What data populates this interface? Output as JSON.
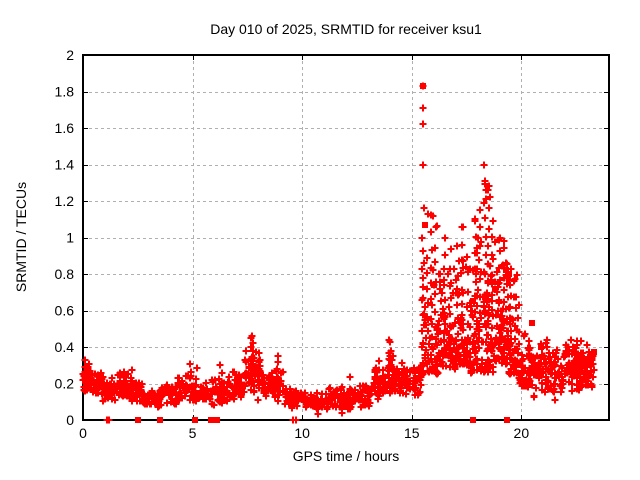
{
  "chart": {
    "title": "Day 010 of 2025, SRMTID for receiver ksu1",
    "xlabel": "GPS time / hours",
    "ylabel": "SRMTID / TECUs",
    "marker_color": "#ff0000",
    "grid_color": "#b0b0b0",
    "axis_color": "#000000",
    "background": "#ffffff",
    "x_tick_labels": [
      "0",
      "5",
      "10",
      "15",
      "20"
    ],
    "y_tick_labels": [
      "0",
      "0.2",
      "0.4",
      "0.6",
      "0.8",
      "1",
      "1.2",
      "1.4",
      "1.6",
      "1.8",
      "2"
    ]
  },
  "chart_data": {
    "type": "scatter",
    "title": "Day 010 of 2025, SRMTID for receiver ksu1",
    "xlabel": "GPS time / hours",
    "ylabel": "SRMTID / TECUs",
    "series_name": "SRMTID",
    "marker": "plus",
    "marker_color": "#ff0000",
    "xlim": [
      0,
      24
    ],
    "ylim": [
      0,
      2
    ],
    "x_ticks": [
      0,
      5,
      10,
      15,
      20
    ],
    "y_ticks": [
      0,
      0.2,
      0.4,
      0.6,
      0.8,
      1,
      1.2,
      1.4,
      1.6,
      1.8,
      2
    ],
    "grid": "dashed gray at major ticks",
    "legend": "none",
    "note": "Dense ~2800-point GPS scintillation scatter. cloud_bands give the envelope of the dense cloud as [x_start_hr, x_end_hr, y_min, y_max, n_points]; streaks are vertical bursts [x_hr, y_min, y_max, n_points]; notable_points are individually readable extreme markers [x_hr, y_TECU].",
    "cloud_bands": [
      [
        0.0,
        0.35,
        0.15,
        0.33,
        28
      ],
      [
        0.35,
        0.9,
        0.13,
        0.28,
        42
      ],
      [
        0.9,
        1.5,
        0.1,
        0.24,
        42
      ],
      [
        1.5,
        2.1,
        0.1,
        0.27,
        42
      ],
      [
        2.1,
        2.7,
        0.09,
        0.23,
        36
      ],
      [
        2.7,
        3.5,
        0.06,
        0.17,
        48
      ],
      [
        3.5,
        4.3,
        0.07,
        0.2,
        42
      ],
      [
        4.3,
        5.0,
        0.09,
        0.26,
        40
      ],
      [
        5.0,
        5.6,
        0.08,
        0.2,
        34
      ],
      [
        5.6,
        6.6,
        0.07,
        0.24,
        52
      ],
      [
        6.6,
        7.4,
        0.1,
        0.28,
        46
      ],
      [
        7.4,
        8.2,
        0.12,
        0.4,
        50
      ],
      [
        8.2,
        9.2,
        0.1,
        0.3,
        52
      ],
      [
        9.2,
        10.2,
        0.06,
        0.18,
        52
      ],
      [
        10.2,
        11.2,
        0.05,
        0.15,
        52
      ],
      [
        11.2,
        12.4,
        0.05,
        0.18,
        58
      ],
      [
        12.4,
        13.2,
        0.06,
        0.2,
        46
      ],
      [
        13.2,
        13.9,
        0.1,
        0.3,
        40
      ],
      [
        13.9,
        14.4,
        0.12,
        0.38,
        34
      ],
      [
        14.4,
        15.1,
        0.12,
        0.32,
        40
      ],
      [
        15.1,
        15.5,
        0.12,
        0.35,
        26
      ],
      [
        15.5,
        16.2,
        0.25,
        0.95,
        48
      ],
      [
        16.2,
        17.0,
        0.28,
        0.95,
        62
      ],
      [
        17.0,
        17.6,
        0.3,
        1.0,
        56
      ],
      [
        17.6,
        18.2,
        0.25,
        1.05,
        56
      ],
      [
        18.2,
        18.8,
        0.25,
        1.1,
        60
      ],
      [
        18.8,
        19.4,
        0.3,
        0.95,
        56
      ],
      [
        19.4,
        19.9,
        0.25,
        0.85,
        50
      ],
      [
        19.9,
        20.4,
        0.18,
        0.55,
        44
      ],
      [
        20.4,
        21.2,
        0.12,
        0.45,
        50
      ],
      [
        21.2,
        22.0,
        0.1,
        0.4,
        52
      ],
      [
        22.0,
        22.7,
        0.15,
        0.45,
        52
      ],
      [
        22.7,
        23.3,
        0.15,
        0.42,
        46
      ]
    ],
    "streaks": [
      [
        0.1,
        0.16,
        0.33,
        6
      ],
      [
        2.2,
        0.1,
        0.27,
        5
      ],
      [
        4.9,
        0.1,
        0.3,
        6
      ],
      [
        5.2,
        0.1,
        0.28,
        5
      ],
      [
        6.3,
        0.08,
        0.3,
        6
      ],
      [
        7.7,
        0.15,
        0.45,
        7
      ],
      [
        7.75,
        0.15,
        0.42,
        6
      ],
      [
        8.0,
        0.12,
        0.35,
        6
      ],
      [
        8.85,
        0.12,
        0.33,
        6
      ],
      [
        10.7,
        0.05,
        0.15,
        5
      ],
      [
        11.8,
        0.05,
        0.17,
        5
      ],
      [
        12.2,
        0.06,
        0.22,
        5
      ],
      [
        13.5,
        0.1,
        0.32,
        6
      ],
      [
        14.0,
        0.15,
        0.43,
        7
      ],
      [
        14.05,
        0.14,
        0.38,
        6
      ],
      [
        14.55,
        0.15,
        0.3,
        6
      ],
      [
        15.5,
        0.3,
        1.0,
        9
      ],
      [
        15.55,
        0.25,
        0.85,
        8
      ],
      [
        15.7,
        0.3,
        0.9,
        8
      ],
      [
        15.9,
        0.35,
        1.13,
        9
      ],
      [
        16.1,
        0.4,
        1.05,
        8
      ],
      [
        16.3,
        0.35,
        0.8,
        7
      ],
      [
        16.5,
        0.4,
        1.0,
        8
      ],
      [
        16.75,
        0.35,
        0.92,
        8
      ],
      [
        17.1,
        0.4,
        0.95,
        8
      ],
      [
        17.3,
        0.45,
        1.06,
        8
      ],
      [
        17.55,
        0.35,
        0.9,
        7
      ],
      [
        17.9,
        0.4,
        1.1,
        9
      ],
      [
        18.0,
        0.35,
        1.0,
        8
      ],
      [
        18.1,
        0.5,
        1.15,
        8
      ],
      [
        18.35,
        0.5,
        1.3,
        9
      ],
      [
        18.5,
        0.45,
        1.25,
        9
      ],
      [
        18.65,
        0.4,
        1.1,
        8
      ],
      [
        19.0,
        0.4,
        1.0,
        8
      ],
      [
        19.2,
        0.45,
        0.95,
        7
      ],
      [
        19.35,
        0.5,
        0.85,
        7
      ],
      [
        19.5,
        0.35,
        0.82,
        8
      ],
      [
        19.7,
        0.3,
        0.75,
        7
      ],
      [
        20.9,
        0.15,
        0.42,
        6
      ],
      [
        21.5,
        0.1,
        0.35,
        6
      ],
      [
        22.3,
        0.15,
        0.45,
        7
      ],
      [
        22.55,
        0.18,
        0.44,
        7
      ],
      [
        22.7,
        0.2,
        0.42,
        6
      ],
      [
        23.0,
        0.18,
        0.4,
        6
      ]
    ],
    "notable_points": [
      [
        15.5,
        1.83
      ],
      [
        15.52,
        1.71
      ],
      [
        15.5,
        1.62
      ],
      [
        15.51,
        1.4
      ],
      [
        15.55,
        1.16
      ],
      [
        15.72,
        1.13
      ],
      [
        15.95,
        1.12
      ],
      [
        16.12,
        1.06
      ],
      [
        17.32,
        1.06
      ],
      [
        17.9,
        1.1
      ],
      [
        18.12,
        1.15
      ],
      [
        18.3,
        1.4
      ],
      [
        18.33,
        1.31
      ],
      [
        18.4,
        1.26
      ],
      [
        18.31,
        1.19
      ],
      [
        18.52,
        1.28
      ],
      [
        18.56,
        1.22
      ],
      [
        19.02,
        1.0
      ],
      [
        19.2,
        0.98
      ],
      [
        7.68,
        0.45
      ],
      [
        8.9,
        0.35
      ],
      [
        14.02,
        0.43
      ]
    ],
    "bold_points": [
      [
        15.5,
        1.83
      ],
      [
        15.6,
        1.07
      ],
      [
        16.0,
        0.74
      ],
      [
        17.8,
        0.65
      ],
      [
        18.8,
        0.72
      ],
      [
        19.3,
        0.82
      ],
      [
        19.38,
        0.79
      ],
      [
        19.45,
        0.8
      ],
      [
        20.5,
        0.53
      ],
      [
        20.9,
        0.4
      ],
      [
        23.1,
        0.3
      ],
      [
        23.3,
        0.37
      ]
    ],
    "zero_square_x": [
      2.5,
      3.5,
      5.1,
      5.85,
      6.1,
      17.8,
      19.35
    ],
    "zero_plus_x": [
      1.1,
      1.18,
      9.6,
      9.7
    ]
  }
}
